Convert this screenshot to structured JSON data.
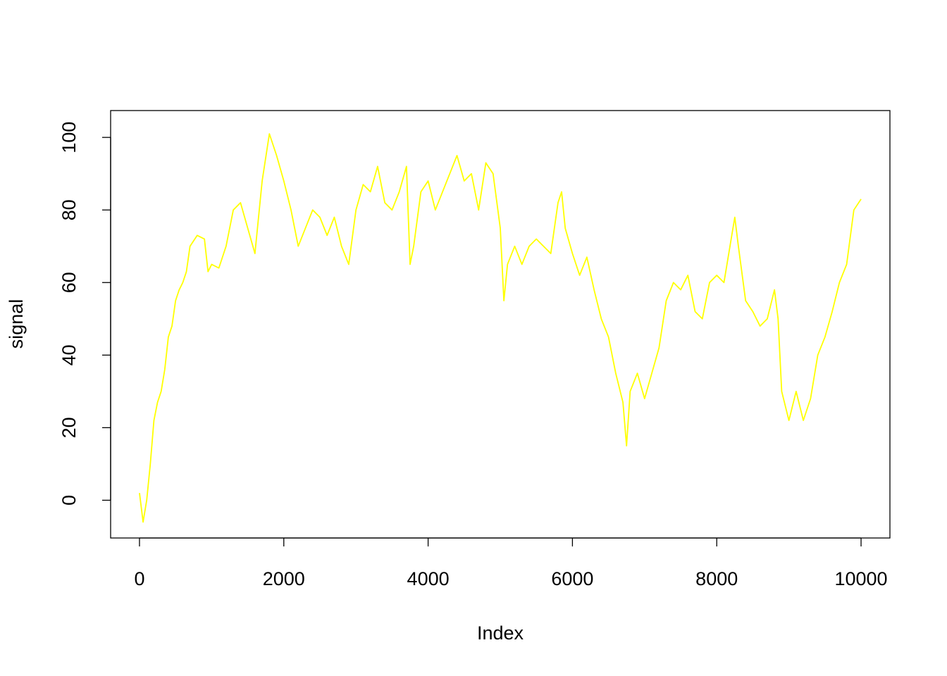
{
  "chart_data": {
    "type": "line",
    "x_label": "Index",
    "y_label": "signal",
    "color": "#ffff00",
    "x": [
      0,
      50,
      100,
      150,
      200,
      250,
      300,
      350,
      400,
      450,
      500,
      550,
      600,
      650,
      700,
      800,
      900,
      950,
      1000,
      1100,
      1200,
      1300,
      1400,
      1500,
      1600,
      1700,
      1800,
      1900,
      2000,
      2100,
      2200,
      2300,
      2400,
      2500,
      2600,
      2700,
      2800,
      2900,
      3000,
      3100,
      3200,
      3300,
      3400,
      3500,
      3600,
      3700,
      3750,
      3800,
      3900,
      4000,
      4100,
      4200,
      4300,
      4400,
      4500,
      4600,
      4700,
      4800,
      4900,
      5000,
      5050,
      5100,
      5200,
      5300,
      5400,
      5500,
      5600,
      5700,
      5800,
      5850,
      5900,
      6000,
      6100,
      6200,
      6300,
      6400,
      6500,
      6600,
      6700,
      6750,
      6800,
      6900,
      7000,
      7100,
      7200,
      7300,
      7400,
      7500,
      7600,
      7700,
      7800,
      7900,
      8000,
      8100,
      8200,
      8250,
      8300,
      8400,
      8500,
      8600,
      8700,
      8800,
      8850,
      8900,
      9000,
      9100,
      9200,
      9300,
      9400,
      9500,
      9600,
      9700,
      9800,
      9900,
      10000
    ],
    "values": [
      2,
      -6,
      0,
      10,
      22,
      27,
      30,
      36,
      45,
      48,
      55,
      58,
      60,
      63,
      70,
      73,
      72,
      63,
      65,
      64,
      70,
      80,
      82,
      75,
      68,
      88,
      101,
      95,
      88,
      80,
      70,
      75,
      80,
      78,
      73,
      78,
      70,
      65,
      80,
      87,
      85,
      92,
      82,
      80,
      85,
      92,
      65,
      70,
      85,
      88,
      80,
      85,
      90,
      95,
      88,
      90,
      80,
      93,
      90,
      75,
      55,
      65,
      70,
      65,
      70,
      72,
      70,
      68,
      82,
      85,
      75,
      68,
      62,
      67,
      58,
      50,
      45,
      35,
      27,
      15,
      30,
      35,
      28,
      35,
      42,
      55,
      60,
      58,
      62,
      52,
      50,
      60,
      62,
      60,
      72,
      78,
      70,
      55,
      52,
      48,
      50,
      58,
      50,
      30,
      22,
      30,
      22,
      28,
      40,
      45,
      52,
      60,
      65,
      80,
      83
    ],
    "xlim": [
      -400,
      10400
    ],
    "ylim": [
      -10.4,
      107.4
    ],
    "xticks": [
      0,
      2000,
      4000,
      6000,
      8000,
      10000
    ],
    "yticks": [
      0,
      20,
      40,
      60,
      80,
      100
    ]
  }
}
